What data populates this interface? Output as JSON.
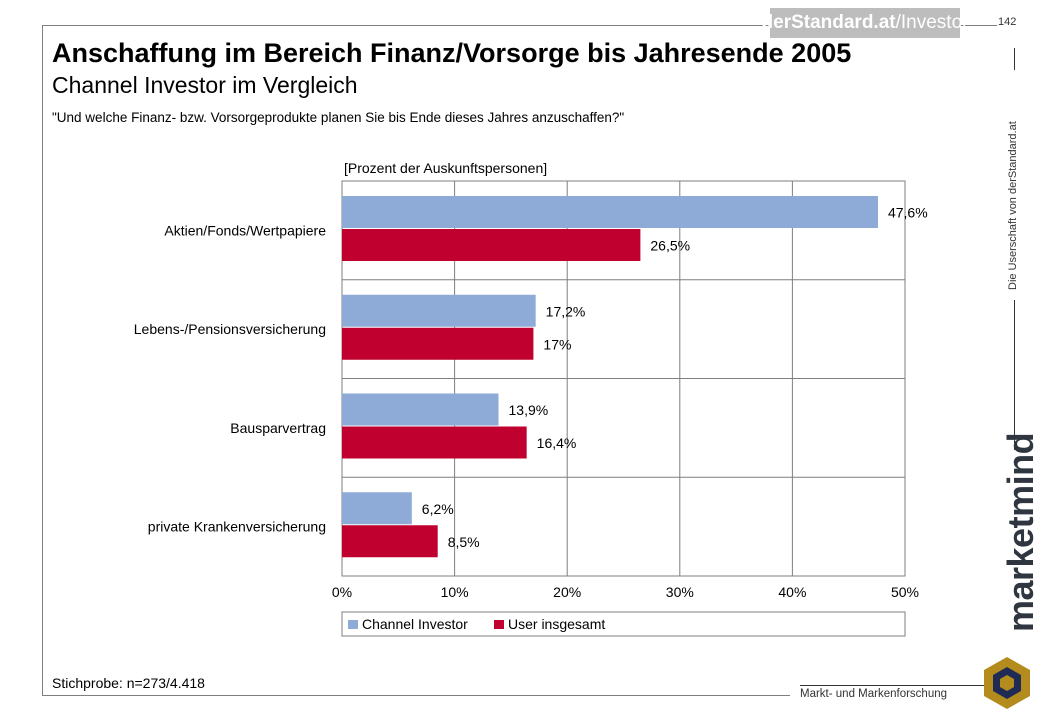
{
  "header": {
    "logo_text_bold": "derStandard.at",
    "logo_text_rest": "/Investor",
    "page_number": "142"
  },
  "title": "Anschaffung im Bereich Finanz/Vorsorge bis Jahresende 2005",
  "subtitle": "Channel Investor im Vergleich",
  "question": "\"Und welche Finanz- bzw. Vorsorgeprodukte planen Sie bis Ende dieses Jahres anzuschaffen?\"",
  "sample": "Stichprobe: n=273/4.418",
  "sidebar": {
    "ownership_text": "Die Userschaft von derStandard.at",
    "brand": "marketmind",
    "tagline": "Markt- und Markenforschung"
  },
  "colors": {
    "channel_investor": "#8eaad7",
    "user_insgesamt": "#c0002f",
    "brand_text": "#2f3640",
    "cube_gold": "#b48c1e",
    "cube_navy": "#1f2a55"
  },
  "chart_data": {
    "type": "bar",
    "orientation": "horizontal",
    "unit_label": "[Prozent der Auskunftspersonen]",
    "categories": [
      "Aktien/Fonds/Wertpapiere",
      "Lebens-/Pensionsversicherung",
      "Bausparvertrag",
      "private Krankenversicherung"
    ],
    "series": [
      {
        "name": "Channel Investor",
        "values": [
          47.6,
          17.2,
          13.9,
          6.2
        ],
        "labels": [
          "47,6%",
          "17,2%",
          "13,9%",
          "6,2%"
        ]
      },
      {
        "name": "User insgesamt",
        "values": [
          26.5,
          17,
          16.4,
          8.5
        ],
        "labels": [
          "26,5%",
          "17%",
          "16,4%",
          "8,5%"
        ]
      }
    ],
    "xlim": [
      0,
      50
    ],
    "xticks": [
      "0%",
      "10%",
      "20%",
      "30%",
      "40%",
      "50%"
    ],
    "grid": true,
    "legend_position": "bottom"
  }
}
